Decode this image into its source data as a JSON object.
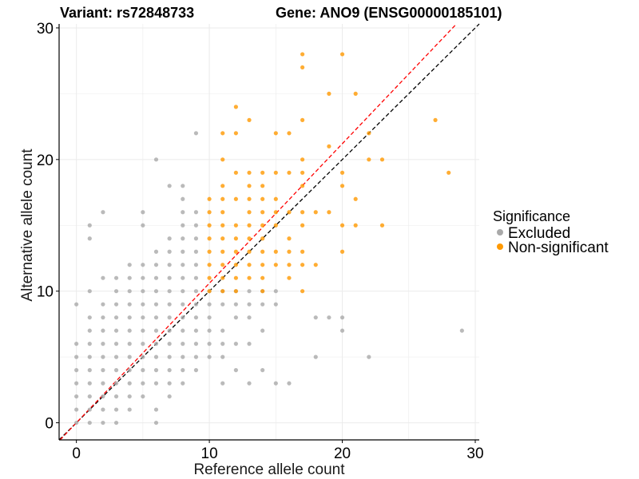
{
  "title_left": "Variant: rs72848733",
  "title_right": "Gene: ANO9 (ENSG00000185101)",
  "chart_data": {
    "type": "scatter",
    "xlabel": "Reference allele count",
    "ylabel": "Alternative allele count",
    "xlim": [
      -1.3,
      30.3
    ],
    "ylim": [
      -1.3,
      30.3
    ],
    "x_ticks": [
      0,
      10,
      20,
      30
    ],
    "y_ticks": [
      0,
      10,
      20,
      30
    ],
    "grid": true,
    "legend": {
      "title": "Significance",
      "position": "right"
    },
    "reference_lines": [
      {
        "label": "",
        "slope": 1.0,
        "intercept": 0,
        "color": "#000000",
        "dash": "dashed"
      },
      {
        "label": "",
        "slope": 1.06,
        "intercept": 0,
        "color": "#ff0000",
        "dash": "dashed"
      }
    ],
    "series": [
      {
        "name": "Excluded",
        "color": "#a9a9a9",
        "points": [
          [
            0,
            0
          ],
          [
            0,
            1
          ],
          [
            0,
            2
          ],
          [
            0,
            3
          ],
          [
            0,
            4
          ],
          [
            0,
            5
          ],
          [
            0,
            6
          ],
          [
            0,
            9
          ],
          [
            1,
            0
          ],
          [
            1,
            1
          ],
          [
            1,
            2
          ],
          [
            1,
            3
          ],
          [
            1,
            4
          ],
          [
            1,
            5
          ],
          [
            1,
            6
          ],
          [
            1,
            7
          ],
          [
            1,
            8
          ],
          [
            1,
            10
          ],
          [
            1,
            14
          ],
          [
            1,
            15
          ],
          [
            2,
            0
          ],
          [
            2,
            1
          ],
          [
            2,
            2
          ],
          [
            2,
            3
          ],
          [
            2,
            4
          ],
          [
            2,
            5
          ],
          [
            2,
            6
          ],
          [
            2,
            7
          ],
          [
            2,
            8
          ],
          [
            2,
            9
          ],
          [
            2,
            11
          ],
          [
            2,
            16
          ],
          [
            3,
            0
          ],
          [
            3,
            1
          ],
          [
            3,
            2
          ],
          [
            3,
            3
          ],
          [
            3,
            4
          ],
          [
            3,
            5
          ],
          [
            3,
            6
          ],
          [
            3,
            7
          ],
          [
            3,
            8
          ],
          [
            3,
            9
          ],
          [
            3,
            10
          ],
          [
            3,
            11
          ],
          [
            4,
            1
          ],
          [
            4,
            2
          ],
          [
            4,
            3
          ],
          [
            4,
            4
          ],
          [
            4,
            5
          ],
          [
            4,
            6
          ],
          [
            4,
            7
          ],
          [
            4,
            8
          ],
          [
            4,
            9
          ],
          [
            4,
            10
          ],
          [
            4,
            11
          ],
          [
            4,
            12
          ],
          [
            5,
            2
          ],
          [
            5,
            3
          ],
          [
            5,
            4
          ],
          [
            5,
            5
          ],
          [
            5,
            6
          ],
          [
            5,
            7
          ],
          [
            5,
            8
          ],
          [
            5,
            9
          ],
          [
            5,
            10
          ],
          [
            5,
            11
          ],
          [
            5,
            12
          ],
          [
            5,
            15
          ],
          [
            5,
            16
          ],
          [
            6,
            0
          ],
          [
            6,
            1
          ],
          [
            6,
            3
          ],
          [
            6,
            4
          ],
          [
            6,
            5
          ],
          [
            6,
            6
          ],
          [
            6,
            7
          ],
          [
            6,
            8
          ],
          [
            6,
            9
          ],
          [
            6,
            10
          ],
          [
            6,
            11
          ],
          [
            6,
            12
          ],
          [
            6,
            13
          ],
          [
            6,
            20
          ],
          [
            7,
            2
          ],
          [
            7,
            3
          ],
          [
            7,
            4
          ],
          [
            7,
            5
          ],
          [
            7,
            6
          ],
          [
            7,
            7
          ],
          [
            7,
            8
          ],
          [
            7,
            9
          ],
          [
            7,
            10
          ],
          [
            7,
            11
          ],
          [
            7,
            12
          ],
          [
            7,
            13
          ],
          [
            7,
            14
          ],
          [
            7,
            18
          ],
          [
            8,
            3
          ],
          [
            8,
            4
          ],
          [
            8,
            5
          ],
          [
            8,
            6
          ],
          [
            8,
            7
          ],
          [
            8,
            8
          ],
          [
            8,
            9
          ],
          [
            8,
            10
          ],
          [
            8,
            11
          ],
          [
            8,
            12
          ],
          [
            8,
            13
          ],
          [
            8,
            14
          ],
          [
            8,
            15
          ],
          [
            8,
            16
          ],
          [
            8,
            17
          ],
          [
            8,
            18
          ],
          [
            9,
            4
          ],
          [
            9,
            5
          ],
          [
            9,
            6
          ],
          [
            9,
            7
          ],
          [
            9,
            8
          ],
          [
            9,
            9
          ],
          [
            9,
            10
          ],
          [
            9,
            11
          ],
          [
            9,
            12
          ],
          [
            9,
            13
          ],
          [
            9,
            14
          ],
          [
            9,
            15
          ],
          [
            9,
            16
          ],
          [
            9,
            22
          ],
          [
            10,
            5
          ],
          [
            10,
            6
          ],
          [
            10,
            7
          ],
          [
            10,
            8
          ],
          [
            10,
            9
          ],
          [
            10,
            10
          ],
          [
            11,
            3
          ],
          [
            11,
            5
          ],
          [
            11,
            6
          ],
          [
            11,
            7
          ],
          [
            11,
            9
          ],
          [
            11,
            10
          ],
          [
            12,
            4
          ],
          [
            12,
            6
          ],
          [
            12,
            8
          ],
          [
            12,
            9
          ],
          [
            12,
            10
          ],
          [
            13,
            3
          ],
          [
            13,
            6
          ],
          [
            13,
            8
          ],
          [
            13,
            9
          ],
          [
            13,
            10
          ],
          [
            14,
            4
          ],
          [
            14,
            7
          ],
          [
            14,
            9
          ],
          [
            14,
            10
          ],
          [
            15,
            3
          ],
          [
            15,
            9
          ],
          [
            15,
            10
          ],
          [
            16,
            3
          ],
          [
            18,
            5
          ],
          [
            18,
            8
          ],
          [
            19,
            8
          ],
          [
            20,
            7
          ],
          [
            20,
            8
          ],
          [
            22,
            5
          ],
          [
            29,
            7
          ]
        ]
      },
      {
        "name": "Non-significant",
        "color": "#ff9900",
        "points": [
          [
            10,
            10
          ],
          [
            10,
            11
          ],
          [
            10,
            12
          ],
          [
            10,
            13
          ],
          [
            10,
            14
          ],
          [
            10,
            15
          ],
          [
            10,
            16
          ],
          [
            10,
            17
          ],
          [
            11,
            10
          ],
          [
            11,
            11
          ],
          [
            11,
            12
          ],
          [
            11,
            13
          ],
          [
            11,
            14
          ],
          [
            11,
            15
          ],
          [
            11,
            16
          ],
          [
            11,
            17
          ],
          [
            11,
            18
          ],
          [
            11,
            20
          ],
          [
            11,
            22
          ],
          [
            12,
            10
          ],
          [
            12,
            11
          ],
          [
            12,
            12
          ],
          [
            12,
            13
          ],
          [
            12,
            14
          ],
          [
            12,
            15
          ],
          [
            12,
            17
          ],
          [
            12,
            19
          ],
          [
            12,
            22
          ],
          [
            12,
            24
          ],
          [
            13,
            11
          ],
          [
            13,
            12
          ],
          [
            13,
            13
          ],
          [
            13,
            14
          ],
          [
            13,
            15
          ],
          [
            13,
            16
          ],
          [
            13,
            17
          ],
          [
            13,
            18
          ],
          [
            13,
            19
          ],
          [
            13,
            23
          ],
          [
            14,
            10
          ],
          [
            14,
            11
          ],
          [
            14,
            12
          ],
          [
            14,
            13
          ],
          [
            14,
            14
          ],
          [
            14,
            15
          ],
          [
            14,
            16
          ],
          [
            14,
            17
          ],
          [
            14,
            18
          ],
          [
            14,
            19
          ],
          [
            15,
            12
          ],
          [
            15,
            13
          ],
          [
            15,
            15
          ],
          [
            15,
            16
          ],
          [
            15,
            17
          ],
          [
            15,
            19
          ],
          [
            15,
            22
          ],
          [
            16,
            11
          ],
          [
            16,
            12
          ],
          [
            16,
            13
          ],
          [
            16,
            14
          ],
          [
            16,
            16
          ],
          [
            16,
            19
          ],
          [
            16,
            22
          ],
          [
            17,
            10
          ],
          [
            17,
            12
          ],
          [
            17,
            13
          ],
          [
            17,
            15
          ],
          [
            17,
            16
          ],
          [
            17,
            18
          ],
          [
            17,
            19
          ],
          [
            17,
            20
          ],
          [
            17,
            23
          ],
          [
            17,
            27
          ],
          [
            17,
            28
          ],
          [
            18,
            12
          ],
          [
            18,
            16
          ],
          [
            19,
            16
          ],
          [
            19,
            21
          ],
          [
            19,
            25
          ],
          [
            20,
            13
          ],
          [
            20,
            15
          ],
          [
            20,
            18
          ],
          [
            20,
            19
          ],
          [
            20,
            28
          ],
          [
            21,
            15
          ],
          [
            21,
            17
          ],
          [
            21,
            25
          ],
          [
            22,
            20
          ],
          [
            22,
            22
          ],
          [
            23,
            15
          ],
          [
            23,
            20
          ],
          [
            27,
            23
          ],
          [
            28,
            19
          ]
        ]
      }
    ]
  }
}
